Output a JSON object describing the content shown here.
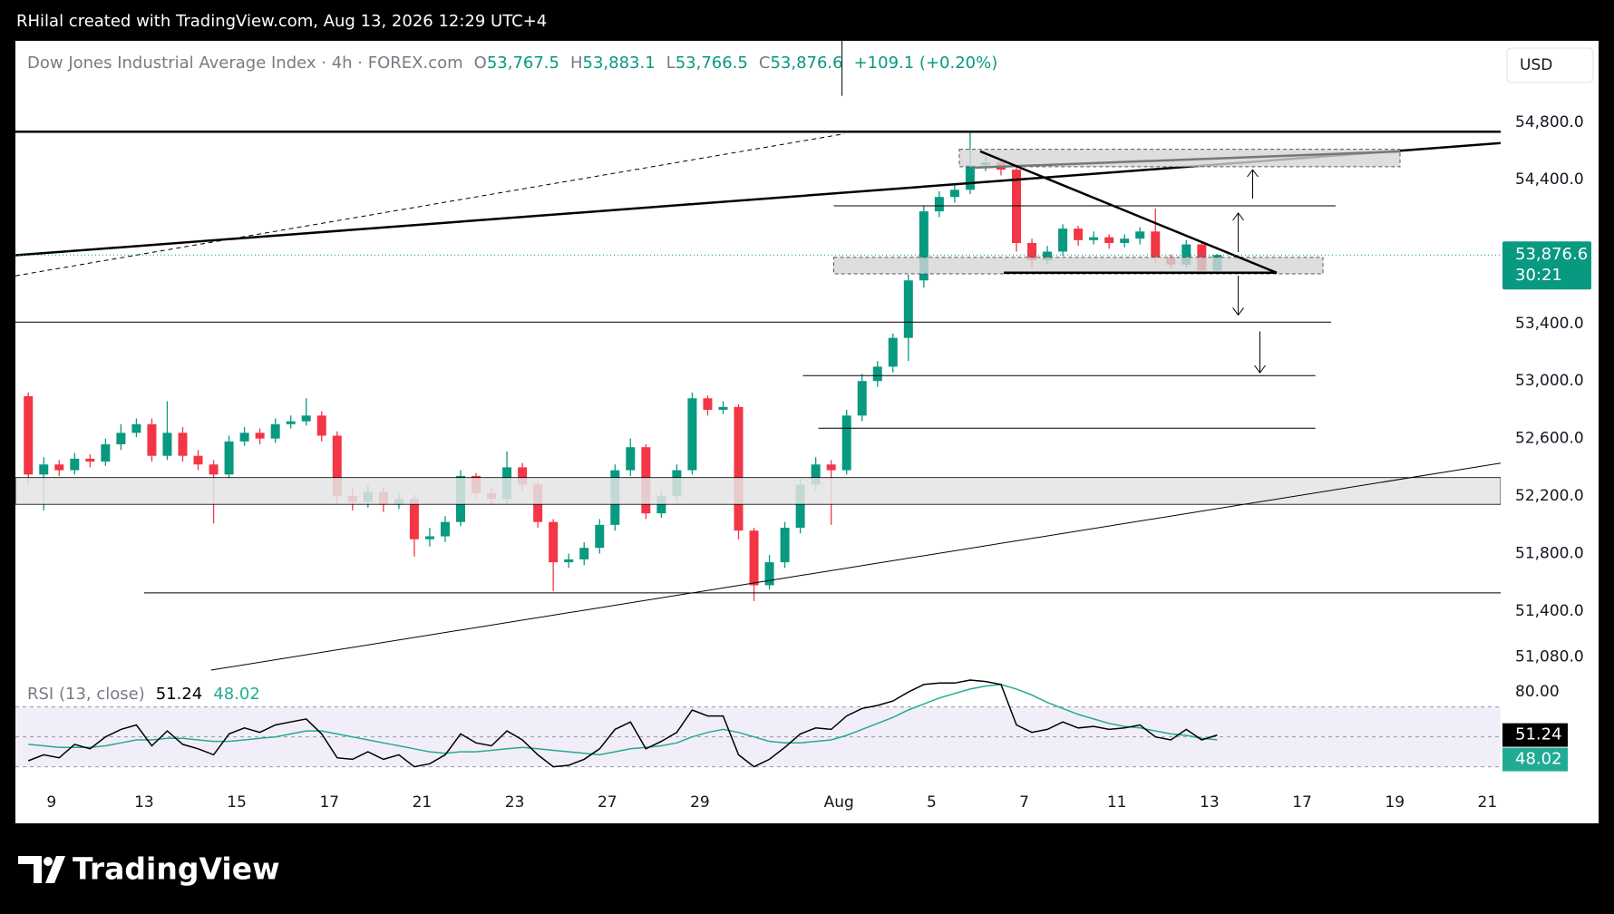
{
  "header": {
    "text": "RHilal created with TradingView.com, Aug 13, 2026 12:29 UTC+4"
  },
  "footer": {
    "logo": "TradingView"
  },
  "chart_data": {
    "type": "candlestick",
    "title": "Dow Jones Industrial Average Index · 4h · FOREX.com",
    "ohlc_legend": [
      {
        "key": "O",
        "value": 53767.5,
        "label": "53,767.5"
      },
      {
        "key": "H",
        "value": 53883.1,
        "label": "53,883.1"
      },
      {
        "key": "L",
        "value": 53766.5,
        "label": "53,766.5"
      },
      {
        "key": "C",
        "value": 53876.6,
        "label": "53,876.6"
      }
    ],
    "change": "+109.1 (+0.20%)",
    "currency": "USD",
    "categories": [
      null,
      null,
      null,
      "9",
      null,
      null,
      null,
      null,
      null,
      "13",
      null,
      null,
      null,
      null,
      null,
      "15",
      null,
      null,
      null,
      null,
      null,
      "17",
      null,
      null,
      null,
      null,
      null,
      "21",
      null,
      null,
      null,
      null,
      null,
      "23",
      null,
      null,
      null,
      null,
      null,
      "27",
      null,
      null,
      null,
      null,
      null,
      "29",
      null,
      null,
      null,
      null,
      null,
      null,
      null,
      null,
      "Aug",
      null,
      null,
      null,
      null,
      null,
      "5",
      null,
      null,
      null,
      null,
      null,
      "7",
      null,
      null,
      null,
      null,
      null,
      "11",
      null,
      null,
      null,
      null,
      null,
      "13",
      null,
      null,
      null,
      null,
      null,
      "17",
      null,
      null,
      null,
      null,
      null,
      "19",
      null,
      null,
      null,
      null,
      null,
      "21",
      null,
      null
    ],
    "open": [
      null,
      52895,
      52350,
      52420,
      52380,
      52460,
      52440,
      52560,
      52640,
      52700,
      52480,
      52640,
      52480,
      52420,
      52350,
      52580,
      52640,
      52600,
      52700,
      52720,
      52760,
      52620,
      52200,
      52160,
      52230,
      52140,
      52180,
      51900,
      51920,
      52020,
      52340,
      52220,
      52180,
      52400,
      52280,
      52020,
      51740,
      51760,
      51840,
      52000,
      52380,
      52540,
      52080,
      52200,
      52380,
      52880,
      52800,
      52820,
      51960,
      51580,
      51740,
      51980,
      52280,
      52420,
      52380,
      52760,
      53000,
      53100,
      53300,
      53700,
      54180,
      54280,
      54330,
      54500,
      54520,
      54470,
      53960,
      53840,
      53900,
      54060,
      53980,
      54000,
      53960,
      53990,
      54040,
      53860,
      53810,
      53950,
      53767.5,
      null,
      null,
      null,
      null,
      null,
      null,
      null,
      null,
      null,
      null,
      null,
      null,
      null,
      null,
      null,
      null,
      null,
      null,
      null,
      null
    ],
    "high": [
      null,
      52920,
      52470,
      52450,
      52500,
      52490,
      52600,
      52700,
      52740,
      52740,
      52860,
      52680,
      52520,
      52450,
      52620,
      52680,
      52670,
      52740,
      52760,
      52880,
      52790,
      52650,
      52260,
      52280,
      52260,
      52220,
      52210,
      51980,
      52060,
      52380,
      52360,
      52260,
      52510,
      52430,
      52300,
      52040,
      51800,
      51880,
      52040,
      52420,
      52600,
      52560,
      52240,
      52420,
      52920,
      52900,
      52860,
      52840,
      51980,
      51790,
      52020,
      52320,
      52470,
      52450,
      52800,
      53050,
      53140,
      53330,
      53740,
      54220,
      54320,
      54370,
      54740,
      54560,
      54540,
      54500,
      53990,
      53940,
      54090,
      54080,
      54040,
      54020,
      54020,
      54070,
      54200,
      53880,
      53980,
      53970,
      53883.1,
      null,
      null,
      null,
      null,
      null,
      null,
      null,
      null,
      null,
      null,
      null,
      null,
      null,
      null,
      null,
      null,
      null,
      null,
      null,
      null
    ],
    "low": [
      null,
      52280,
      52100,
      52340,
      52350,
      52400,
      52410,
      52520,
      52610,
      52440,
      52450,
      52440,
      52380,
      52010,
      52320,
      52550,
      52560,
      52570,
      52670,
      52690,
      52580,
      52150,
      52100,
      52120,
      52090,
      52110,
      51780,
      51850,
      51880,
      51990,
      52180,
      52140,
      52150,
      52240,
      51980,
      51540,
      51700,
      51720,
      51800,
      51960,
      52340,
      52040,
      52050,
      52160,
      52350,
      52760,
      52770,
      51900,
      51470,
      51550,
      51700,
      51940,
      52240,
      52000,
      52350,
      52720,
      52960,
      53060,
      53140,
      53650,
      54140,
      54240,
      54300,
      54460,
      54430,
      53900,
      53790,
      53810,
      53870,
      53940,
      53950,
      53920,
      53930,
      53950,
      53820,
      53780,
      53790,
      53740,
      53766.5,
      null,
      null,
      null,
      null,
      null,
      null,
      null,
      null,
      null,
      null,
      null,
      null,
      null,
      null,
      null,
      null,
      null,
      null,
      null,
      null
    ],
    "close": [
      null,
      52350,
      52420,
      52380,
      52460,
      52440,
      52560,
      52640,
      52700,
      52480,
      52640,
      52480,
      52420,
      52350,
      52580,
      52640,
      52600,
      52700,
      52720,
      52760,
      52620,
      52200,
      52160,
      52230,
      52140,
      52180,
      51900,
      51920,
      52020,
      52340,
      52220,
      52180,
      52400,
      52280,
      52020,
      51740,
      51760,
      51840,
      52000,
      52380,
      52540,
      52080,
      52200,
      52380,
      52880,
      52800,
      52820,
      51960,
      51580,
      51740,
      51980,
      52280,
      52420,
      52380,
      52760,
      53000,
      53100,
      53300,
      53700,
      54180,
      54280,
      54330,
      54500,
      54520,
      54470,
      53960,
      53840,
      53900,
      54060,
      53980,
      54000,
      53960,
      53990,
      54040,
      53860,
      53810,
      53950,
      53767.5,
      53876.6,
      null,
      null,
      null,
      null,
      null,
      null,
      null,
      null,
      null,
      null,
      null,
      null,
      null,
      null,
      null,
      null,
      null,
      null,
      null,
      null
    ],
    "colors": {
      "up": "#089981",
      "down": "#f23645"
    },
    "ylim": [
      50927,
      55366
    ],
    "yticks": [
      {
        "value": 54800,
        "label": "54,800.0"
      },
      {
        "value": 54400,
        "label": "54,400.0"
      },
      {
        "value": 53400,
        "label": "53,400.0"
      },
      {
        "value": 53000,
        "label": "53,000.0"
      },
      {
        "value": 52600,
        "label": "52,600.0"
      },
      {
        "value": 52200,
        "label": "52,200.0"
      },
      {
        "value": 51800,
        "label": "51,800.0"
      },
      {
        "value": 51400,
        "label": "51,400.0"
      },
      {
        "value": 51080,
        "label": "51,080.0"
      }
    ],
    "last_price": {
      "value": 53876.6,
      "label": "53,876.6"
    },
    "countdown": "30:21",
    "rsi": {
      "title": "RSI (13, close)",
      "values": [
        null,
        34,
        38,
        36,
        45,
        42,
        50,
        55,
        58,
        44,
        54,
        45,
        42,
        38,
        52,
        56,
        53,
        58,
        60,
        62,
        52,
        36,
        35,
        40,
        35,
        38,
        30,
        32,
        38,
        52,
        46,
        44,
        54,
        48,
        38,
        30,
        31,
        35,
        42,
        55,
        60,
        42,
        47,
        53,
        68,
        64,
        64,
        38,
        30,
        35,
        43,
        52,
        56,
        55,
        64,
        69,
        71,
        74,
        80,
        85,
        86,
        86,
        88,
        87,
        85,
        58,
        53,
        55,
        60,
        56,
        57,
        55,
        56,
        58,
        50,
        48,
        55,
        48,
        51.24,
        null,
        null,
        null,
        null,
        null,
        null,
        null,
        null,
        null,
        null,
        null,
        null,
        null,
        null,
        null,
        null,
        null,
        null,
        null,
        null
      ],
      "ma_values": [
        null,
        45,
        44,
        43,
        43,
        43,
        44,
        46,
        48,
        48,
        49,
        49,
        48,
        47,
        47,
        48,
        49,
        50,
        52,
        54,
        54,
        52,
        50,
        48,
        46,
        44,
        42,
        40,
        39,
        40,
        40,
        41,
        42,
        43,
        42,
        41,
        40,
        39,
        38,
        40,
        42,
        43,
        44,
        46,
        50,
        53,
        55,
        53,
        50,
        47,
        46,
        46,
        47,
        48,
        51,
        55,
        59,
        63,
        68,
        72,
        76,
        79,
        82,
        84,
        85,
        82,
        78,
        73,
        69,
        65,
        62,
        59,
        57,
        56,
        54,
        52,
        51,
        49,
        48.02,
        null,
        null,
        null,
        null,
        null,
        null,
        null,
        null,
        null,
        null,
        null,
        null,
        null,
        null,
        null,
        null,
        null,
        null,
        null,
        null
      ],
      "color": "#000000",
      "ma_color": "#22ab94",
      "ylim": [
        12.8,
        88.6
      ],
      "yticks": [
        {
          "value": 80,
          "label": "80.00"
        }
      ],
      "bands": [
        70,
        50,
        30
      ]
    }
  }
}
